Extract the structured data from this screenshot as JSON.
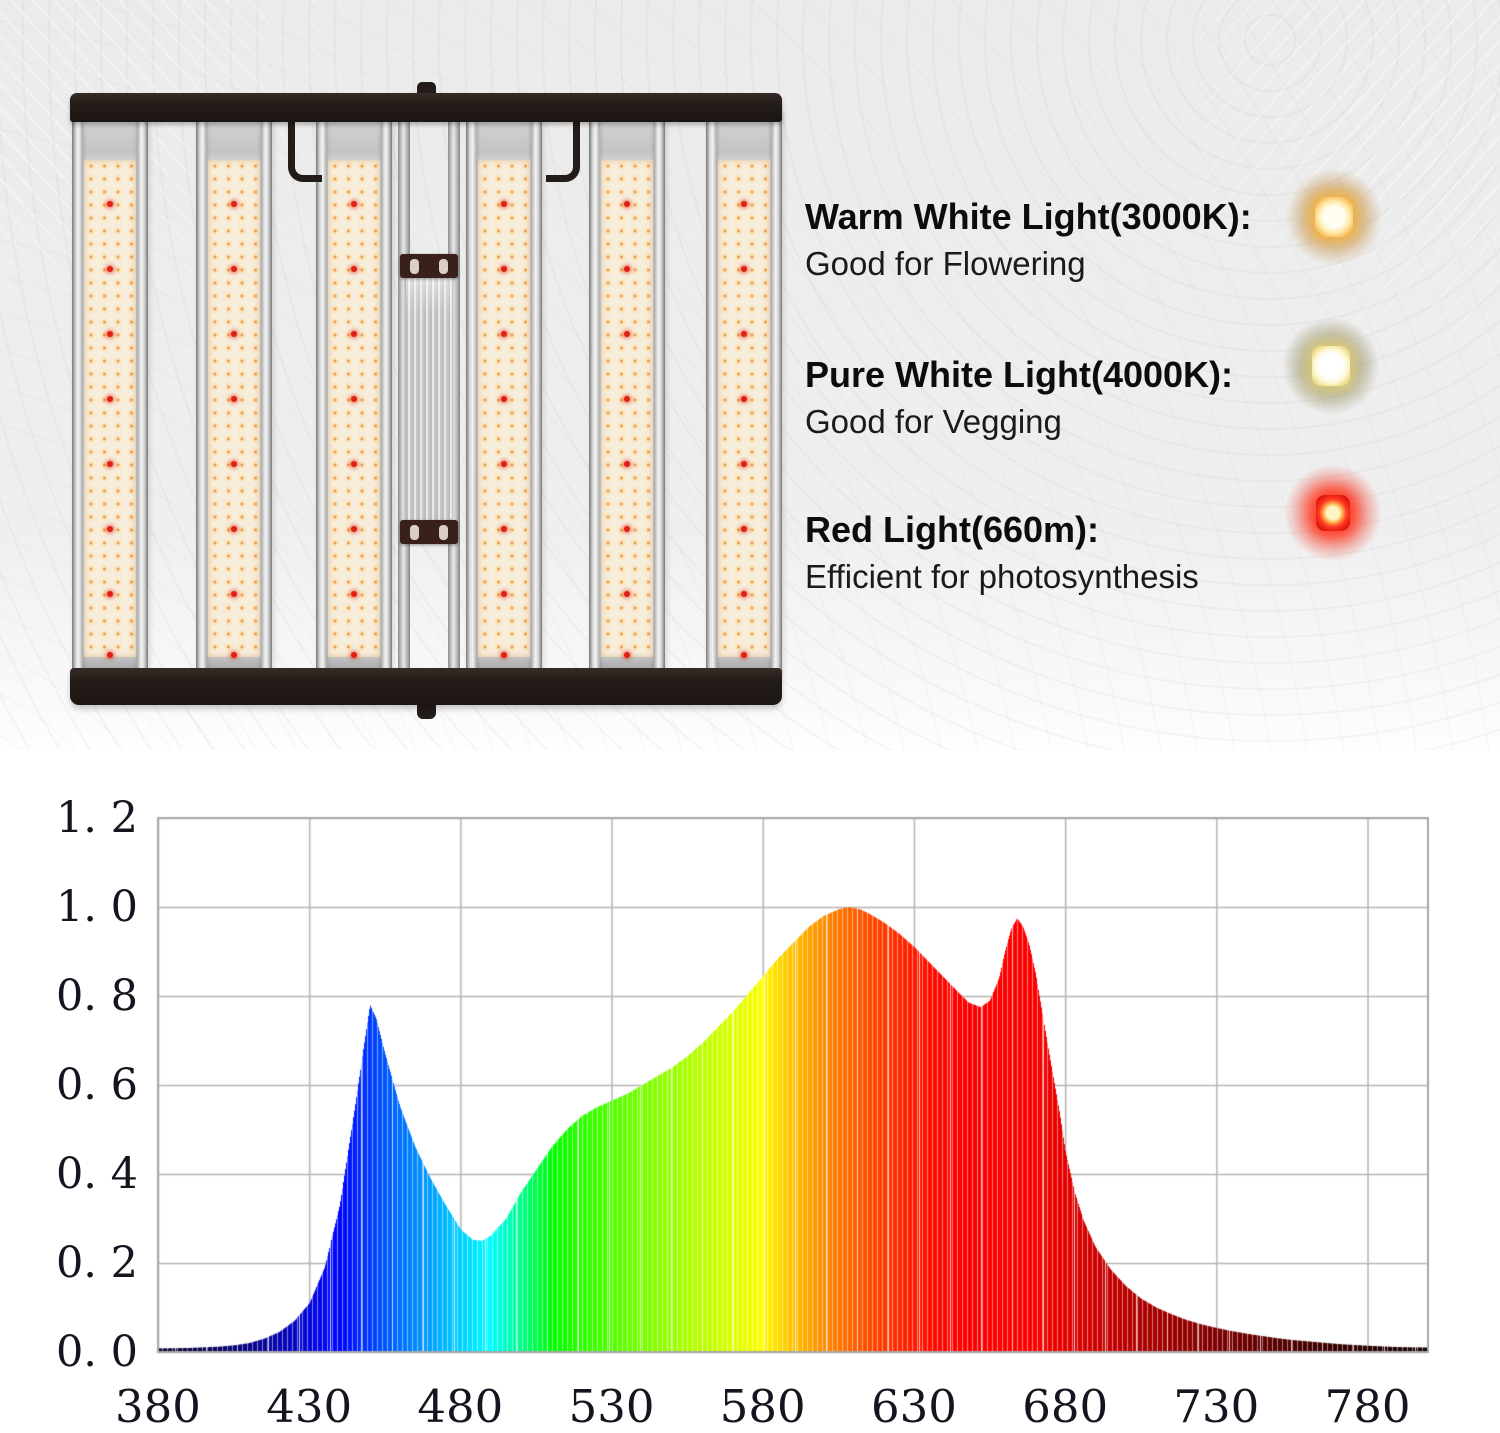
{
  "fixture": {
    "name": "6-bar foldable LED grow light",
    "bar_count": 6,
    "warm_led_color": "#fce4bd",
    "red_led_color": "#e01f15",
    "rail_color": "#241c18"
  },
  "legend": {
    "items": [
      {
        "id": "warm-white",
        "title": "Warm White Light(3000K):",
        "description": "Good for Flowering",
        "chip_color": "#fff6dc",
        "glow_color": "#efae4e"
      },
      {
        "id": "pure-white",
        "title": "Pure White Light(4000K):",
        "description": "Good for Vegging",
        "chip_color": "#ffffff",
        "glow_color": "#e6d67c"
      },
      {
        "id": "red",
        "title": "Red Light(660m):",
        "description": "Efficient for photosynthesis",
        "chip_color": "#ff3a22",
        "glow_color": "#ff4530"
      }
    ]
  },
  "chart_data": {
    "type": "area",
    "title": "",
    "xlabel": "",
    "ylabel": "",
    "x_range": [
      380,
      800
    ],
    "ylim": [
      0,
      1.2
    ],
    "grid": true,
    "legend_position": "none",
    "fill": "spectral-gradient-by-wavelength",
    "x_ticks": [
      380,
      430,
      480,
      530,
      580,
      630,
      680,
      730,
      780
    ],
    "x_tick_labels": [
      "380",
      "430",
      "480",
      "530",
      "580",
      "630",
      "680",
      "730",
      "780"
    ],
    "y_ticks": [
      0,
      0.2,
      0.4,
      0.6,
      0.8,
      1.0,
      1.2
    ],
    "y_tick_labels": [
      "0. 0",
      "0. 2",
      "0. 4",
      "0. 6",
      "0. 8",
      "1. 0",
      "1. 2"
    ],
    "series": [
      {
        "name": "spectrum",
        "points": [
          [
            380,
            0.008
          ],
          [
            390,
            0.009
          ],
          [
            400,
            0.012
          ],
          [
            405,
            0.015
          ],
          [
            410,
            0.02
          ],
          [
            415,
            0.03
          ],
          [
            420,
            0.045
          ],
          [
            425,
            0.07
          ],
          [
            430,
            0.11
          ],
          [
            435,
            0.19
          ],
          [
            440,
            0.33
          ],
          [
            445,
            0.55
          ],
          [
            448,
            0.69
          ],
          [
            450,
            0.78
          ],
          [
            452,
            0.75
          ],
          [
            455,
            0.67
          ],
          [
            460,
            0.55
          ],
          [
            465,
            0.46
          ],
          [
            470,
            0.39
          ],
          [
            475,
            0.33
          ],
          [
            480,
            0.275
          ],
          [
            484,
            0.252
          ],
          [
            487,
            0.25
          ],
          [
            490,
            0.262
          ],
          [
            495,
            0.3
          ],
          [
            500,
            0.36
          ],
          [
            505,
            0.41
          ],
          [
            510,
            0.46
          ],
          [
            515,
            0.5
          ],
          [
            520,
            0.53
          ],
          [
            525,
            0.55
          ],
          [
            530,
            0.565
          ],
          [
            535,
            0.58
          ],
          [
            540,
            0.6
          ],
          [
            545,
            0.62
          ],
          [
            550,
            0.64
          ],
          [
            555,
            0.665
          ],
          [
            560,
            0.695
          ],
          [
            565,
            0.73
          ],
          [
            570,
            0.765
          ],
          [
            575,
            0.805
          ],
          [
            580,
            0.845
          ],
          [
            585,
            0.885
          ],
          [
            590,
            0.92
          ],
          [
            595,
            0.955
          ],
          [
            600,
            0.98
          ],
          [
            605,
            0.995
          ],
          [
            608,
            1.0
          ],
          [
            612,
            0.995
          ],
          [
            615,
            0.985
          ],
          [
            620,
            0.965
          ],
          [
            625,
            0.94
          ],
          [
            630,
            0.91
          ],
          [
            635,
            0.875
          ],
          [
            640,
            0.84
          ],
          [
            645,
            0.805
          ],
          [
            648,
            0.785
          ],
          [
            652,
            0.775
          ],
          [
            655,
            0.79
          ],
          [
            658,
            0.84
          ],
          [
            660,
            0.9
          ],
          [
            662,
            0.95
          ],
          [
            664,
            0.975
          ],
          [
            666,
            0.955
          ],
          [
            668,
            0.915
          ],
          [
            670,
            0.855
          ],
          [
            672,
            0.775
          ],
          [
            675,
            0.655
          ],
          [
            678,
            0.54
          ],
          [
            680,
            0.45
          ],
          [
            683,
            0.36
          ],
          [
            686,
            0.295
          ],
          [
            690,
            0.235
          ],
          [
            695,
            0.185
          ],
          [
            700,
            0.148
          ],
          [
            705,
            0.12
          ],
          [
            710,
            0.1
          ],
          [
            715,
            0.085
          ],
          [
            720,
            0.072
          ],
          [
            725,
            0.062
          ],
          [
            730,
            0.054
          ],
          [
            735,
            0.047
          ],
          [
            740,
            0.041
          ],
          [
            745,
            0.036
          ],
          [
            750,
            0.031
          ],
          [
            755,
            0.027
          ],
          [
            760,
            0.024
          ],
          [
            765,
            0.021
          ],
          [
            770,
            0.018
          ],
          [
            775,
            0.016
          ],
          [
            780,
            0.014
          ],
          [
            790,
            0.011
          ],
          [
            800,
            0.01
          ]
        ]
      }
    ]
  }
}
